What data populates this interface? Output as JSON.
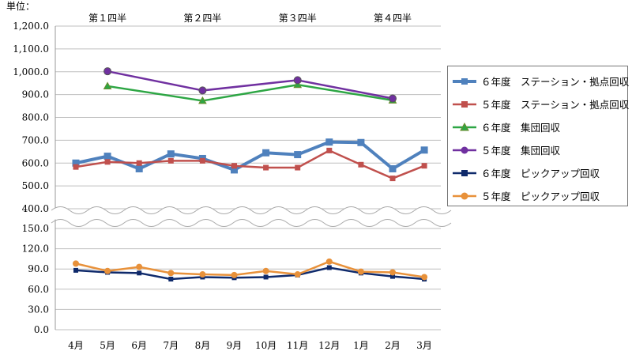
{
  "chart_data": {
    "type": "line",
    "unit_label": "単位：",
    "categories": [
      "4月",
      "5月",
      "6月",
      "7月",
      "8月",
      "9月",
      "10月",
      "11月",
      "12月",
      "1月",
      "2月",
      "3月"
    ],
    "quarters": [
      "第１四半",
      "第２四半",
      "第３四半",
      "第４四半"
    ],
    "y_axis_break": true,
    "upper_ylim": [
      400,
      1200
    ],
    "upper_ticks": [
      "1,200.0",
      "1,100.0",
      "1,000.0",
      "900.0",
      "800.0",
      "700.0",
      "600.0",
      "500.0",
      "400.0"
    ],
    "lower_ylim": [
      0,
      150
    ],
    "lower_ticks": [
      "150.0",
      "120.0",
      "90.0",
      "60.0",
      "30.0",
      "0.0"
    ],
    "grid": true,
    "legend_placement": "right",
    "series": [
      {
        "name": "６年度　ステーション・拠点回収",
        "color": "#4F81BD",
        "marker": "square",
        "panel": "upper",
        "values": [
          600,
          630,
          575,
          640,
          620,
          570,
          645,
          637,
          692,
          690,
          575,
          657
        ]
      },
      {
        "name": "５年度　ステーション・拠点回収",
        "color": "#C0504D",
        "marker": "square",
        "panel": "upper",
        "values": [
          583,
          605,
          600,
          610,
          610,
          588,
          580,
          580,
          655,
          593,
          533,
          588
        ]
      },
      {
        "name": "６年度　集団回収",
        "color": "#2DA644",
        "marker": "triangle",
        "panel": "upper",
        "values": [
          null,
          937,
          null,
          null,
          873,
          null,
          null,
          943,
          null,
          null,
          875,
          null
        ]
      },
      {
        "name": "５年度　集団回収",
        "color": "#7030A0",
        "marker": "circle",
        "panel": "upper",
        "values": [
          null,
          1002,
          null,
          null,
          918,
          null,
          null,
          963,
          null,
          null,
          883,
          null
        ]
      },
      {
        "name": "６年度　ピックアップ回収",
        "color": "#0F2A6B",
        "marker": "square",
        "panel": "lower",
        "values": [
          88,
          85,
          84,
          75,
          78,
          77,
          78,
          81,
          92,
          84,
          79,
          75
        ]
      },
      {
        "name": "５年度　ピックアップ回収",
        "color": "#E8913A",
        "marker": "circle",
        "panel": "lower",
        "values": [
          98,
          87,
          93,
          84,
          82,
          81,
          87,
          82,
          101,
          86,
          85,
          78
        ]
      }
    ]
  }
}
